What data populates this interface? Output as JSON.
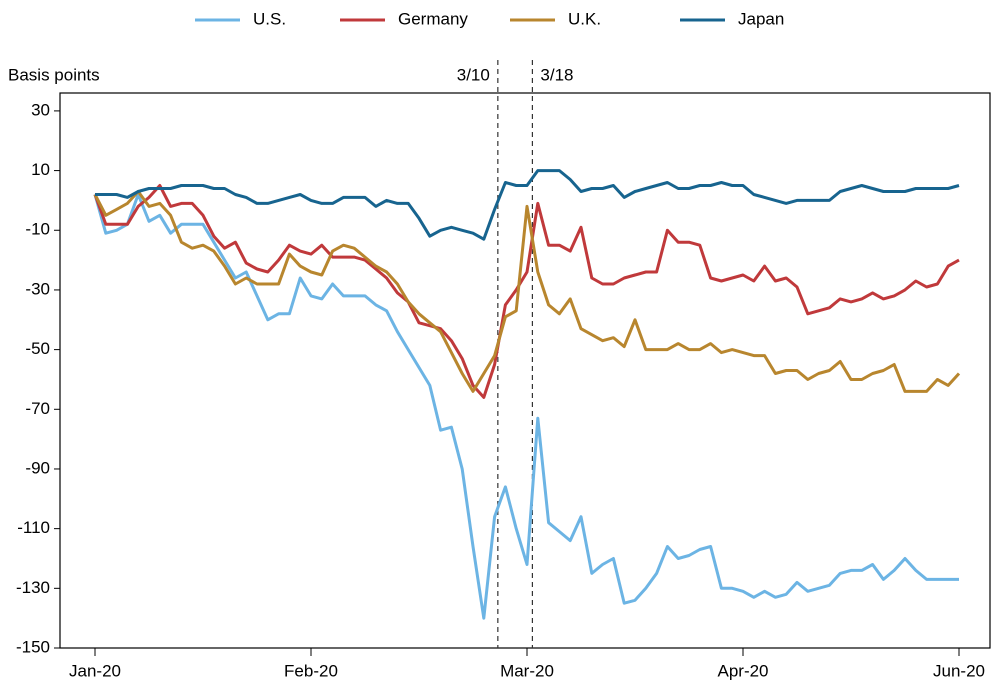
{
  "chart_data": {
    "type": "line",
    "ylabel": "Basis points",
    "x": [
      0,
      1,
      2,
      3,
      4,
      5,
      6,
      7,
      8,
      9,
      10,
      11,
      12,
      13,
      14,
      15,
      16,
      17,
      18,
      19,
      20,
      21,
      22,
      23,
      24,
      25,
      26,
      27,
      28,
      29,
      30,
      31,
      32,
      33,
      34,
      35,
      36,
      37,
      38,
      39,
      40,
      41,
      42,
      43,
      44,
      45,
      46,
      47,
      48,
      49,
      50,
      51,
      52,
      53,
      54,
      55,
      56,
      57,
      58,
      59,
      60,
      61,
      62,
      63,
      64,
      65,
      66,
      67,
      68,
      69,
      70,
      71,
      72,
      73,
      74,
      75,
      76,
      77,
      78,
      79,
      80
    ],
    "series": [
      {
        "name": "U.S.",
        "color": "#6cb4e4",
        "values": [
          2,
          -11,
          -10,
          -8,
          2,
          -7,
          -5,
          -11,
          -8,
          -8,
          -8,
          -14,
          -20,
          -26,
          -24,
          -32,
          -40,
          -38,
          -38,
          -26,
          -32,
          -33,
          -28,
          -32,
          -32,
          -32,
          -35,
          -37,
          -44,
          -50,
          -56,
          -62,
          -77,
          -76,
          -90,
          -116,
          -140,
          -106,
          -96,
          -110,
          -122,
          -73,
          -108,
          -111,
          -114,
          -106,
          -125,
          -122,
          -120,
          -135,
          -134,
          -130,
          -125,
          -116,
          -120,
          -119,
          -117,
          -116,
          -130,
          -130,
          -131,
          -133,
          -131,
          -133,
          -132,
          -128,
          -131,
          -130,
          -129,
          -125,
          -124,
          -124,
          -122,
          -127,
          -124,
          -120,
          -124,
          -127,
          -127,
          -127,
          -127
        ]
      },
      {
        "name": "Germany",
        "color": "#c0393b",
        "values": [
          2,
          -8,
          -8,
          -8,
          -2,
          1,
          5,
          -2,
          -1,
          -1,
          -5,
          -12,
          -16,
          -14,
          -21,
          -23,
          -24,
          -20,
          -15,
          -17,
          -18,
          -15,
          -19,
          -19,
          -19,
          -20,
          -23,
          -26,
          -31,
          -34,
          -41,
          -42,
          -43,
          -47,
          -53,
          -62,
          -66,
          -55,
          -35,
          -30,
          -24,
          -1,
          -15,
          -15,
          -17,
          -9,
          -26,
          -28,
          -28,
          -26,
          -25,
          -24,
          -24,
          -10,
          -14,
          -14,
          -15,
          -26,
          -27,
          -26,
          -25,
          -27,
          -22,
          -27,
          -26,
          -29,
          -38,
          -37,
          -36,
          -33,
          -34,
          -33,
          -31,
          -33,
          -32,
          -30,
          -27,
          -29,
          -28,
          -22,
          -20
        ]
      },
      {
        "name": "U.K.",
        "color": "#b8862e",
        "values": [
          2,
          -5,
          -3,
          -1,
          3,
          -2,
          -1,
          -5,
          -14,
          -16,
          -15,
          -17,
          -22,
          -28,
          -26,
          -28,
          -28,
          -28,
          -18,
          -22,
          -24,
          -25,
          -17,
          -15,
          -16,
          -19,
          -22,
          -24,
          -28,
          -34,
          -38,
          -41,
          -44,
          -51,
          -58,
          -64,
          -58,
          -52,
          -39,
          -37,
          -2,
          -24,
          -35,
          -38,
          -33,
          -43,
          -45,
          -47,
          -46,
          -49,
          -40,
          -50,
          -50,
          -50,
          -48,
          -50,
          -50,
          -48,
          -51,
          -50,
          -51,
          -52,
          -52,
          -58,
          -57,
          -57,
          -60,
          -58,
          -57,
          -54,
          -60,
          -60,
          -58,
          -57,
          -55,
          -64,
          -64,
          -64,
          -60,
          -62,
          -58
        ]
      },
      {
        "name": "Japan",
        "color": "#17648f",
        "values": [
          2,
          2,
          2,
          1,
          3,
          4,
          4,
          4,
          5,
          5,
          5,
          4,
          4,
          2,
          1,
          -1,
          -1,
          0,
          1,
          2,
          0,
          -1,
          -1,
          1,
          1,
          1,
          -2,
          0,
          -1,
          -1,
          -6,
          -12,
          -10,
          -9,
          -10,
          -11,
          -13,
          -3,
          6,
          5,
          5,
          10,
          10,
          10,
          7,
          3,
          4,
          4,
          5,
          1,
          3,
          4,
          5,
          6,
          4,
          4,
          5,
          5,
          6,
          5,
          5,
          2,
          1,
          0,
          -1,
          0,
          0,
          0,
          0,
          3,
          4,
          5,
          4,
          3,
          3,
          3,
          4,
          4,
          4,
          4,
          5
        ]
      }
    ],
    "annotations": [
      {
        "text": "3/10",
        "x": 37.3
      },
      {
        "text": "3/18",
        "x": 40.5
      }
    ],
    "xlim": [
      -3.24,
      82.87
    ],
    "xticks": [
      {
        "value": 0,
        "label": "Jan-20"
      },
      {
        "value": 20,
        "label": "Feb-20"
      },
      {
        "value": 40,
        "label": "Mar-20"
      },
      {
        "value": 60,
        "label": "Apr-20"
      },
      {
        "value": 80,
        "label": "Jun-20"
      }
    ],
    "ylim": [
      -150,
      36
    ],
    "yticks": [
      -150,
      -130,
      -110,
      -90,
      -70,
      -50,
      -30,
      -10,
      10,
      30
    ],
    "grid": false,
    "legend": "top"
  }
}
